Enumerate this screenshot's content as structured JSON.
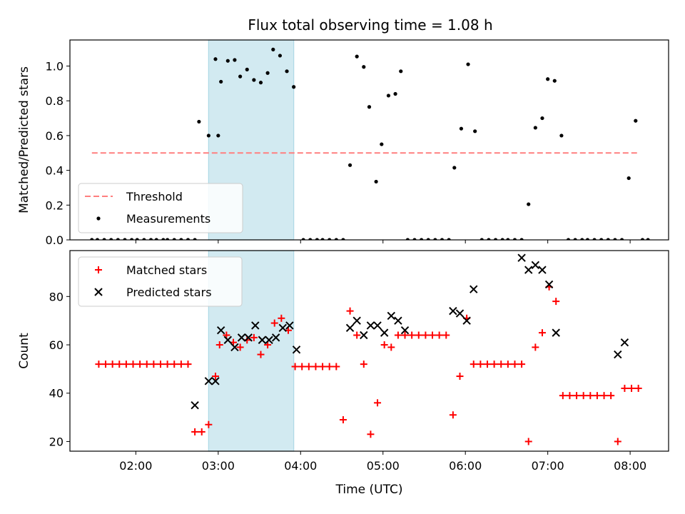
{
  "title": "Flux total observing time = 1.08 h",
  "colors": {
    "threshold": "#ff7f7f",
    "band": "#add8e6",
    "matched": "#ff0000",
    "predicted": "#000000",
    "measurement": "#000000"
  },
  "chart_data": [
    {
      "type": "scatter",
      "ylabel": "Matched/Predicted stars",
      "ylim": [
        0,
        1.15
      ],
      "yticks": [
        "0.0",
        "0.2",
        "0.4",
        "0.6",
        "0.8",
        "1.0"
      ],
      "xlim": [
        "01:12",
        "08:28"
      ],
      "xticks": [
        "02:00",
        "03:00",
        "04:00",
        "05:00",
        "06:00",
        "07:00",
        "08:00"
      ],
      "highlight_band": [
        "02:53",
        "03:55"
      ],
      "legend": {
        "position": "lower-left",
        "entries": [
          "Threshold",
          "Measurements"
        ]
      },
      "threshold": {
        "name": "Threshold",
        "value": 0.5,
        "x": [
          "01:28",
          "08:05"
        ]
      },
      "series": [
        {
          "name": "Measurements",
          "points": [
            [
              "01:28",
              0
            ],
            [
              "01:32",
              0
            ],
            [
              "01:37",
              0
            ],
            [
              "01:42",
              0
            ],
            [
              "01:47",
              0
            ],
            [
              "01:52",
              0
            ],
            [
              "01:57",
              0
            ],
            [
              "02:01",
              0
            ],
            [
              "02:06",
              0
            ],
            [
              "02:11",
              0
            ],
            [
              "02:15",
              0
            ],
            [
              "02:20",
              0
            ],
            [
              "02:23",
              0
            ],
            [
              "02:28",
              0
            ],
            [
              "02:33",
              0
            ],
            [
              "02:38",
              0
            ],
            [
              "02:43",
              0
            ],
            [
              "02:46",
              0.68
            ],
            [
              "02:53",
              0.6
            ],
            [
              "03:00",
              0.6
            ],
            [
              "02:58",
              1.04
            ],
            [
              "03:02",
              0.91
            ],
            [
              "03:07",
              1.03
            ],
            [
              "03:12",
              1.035
            ],
            [
              "03:16",
              0.94
            ],
            [
              "03:21",
              0.98
            ],
            [
              "03:26",
              0.92
            ],
            [
              "03:31",
              0.905
            ],
            [
              "03:36",
              0.96
            ],
            [
              "03:40",
              1.095
            ],
            [
              "03:45",
              1.06
            ],
            [
              "03:50",
              0.97
            ],
            [
              "03:55",
              0.88
            ],
            [
              "04:02",
              0
            ],
            [
              "04:07",
              0
            ],
            [
              "04:12",
              0
            ],
            [
              "04:16",
              0
            ],
            [
              "04:21",
              0
            ],
            [
              "04:26",
              0
            ],
            [
              "04:31",
              0
            ],
            [
              "04:36",
              0.43
            ],
            [
              "04:41",
              1.055
            ],
            [
              "04:46",
              0.995
            ],
            [
              "04:50",
              0.765
            ],
            [
              "04:55",
              0.335
            ],
            [
              "04:59",
              0.55
            ],
            [
              "05:04",
              0.83
            ],
            [
              "05:09",
              0.84
            ],
            [
              "05:13",
              0.97
            ],
            [
              "05:18",
              0
            ],
            [
              "05:23",
              0
            ],
            [
              "05:28",
              0
            ],
            [
              "05:33",
              0
            ],
            [
              "05:38",
              0
            ],
            [
              "05:43",
              0
            ],
            [
              "05:48",
              0
            ],
            [
              "05:52",
              0.415
            ],
            [
              "05:57",
              0.64
            ],
            [
              "06:02",
              1.01
            ],
            [
              "06:07",
              0.625
            ],
            [
              "06:12",
              0
            ],
            [
              "06:17",
              0
            ],
            [
              "06:22",
              0
            ],
            [
              "06:27",
              0
            ],
            [
              "06:31",
              0
            ],
            [
              "06:36",
              0
            ],
            [
              "06:41",
              0
            ],
            [
              "06:46",
              0.205
            ],
            [
              "06:51",
              0.645
            ],
            [
              "06:56",
              0.7
            ],
            [
              "07:00",
              0.925
            ],
            [
              "07:05",
              0.915
            ],
            [
              "07:10",
              0.6
            ],
            [
              "07:15",
              0
            ],
            [
              "07:20",
              0
            ],
            [
              "07:25",
              0
            ],
            [
              "07:29",
              0
            ],
            [
              "07:34",
              0
            ],
            [
              "07:39",
              0
            ],
            [
              "07:44",
              0
            ],
            [
              "07:49",
              0
            ],
            [
              "07:54",
              0
            ],
            [
              "07:59",
              0.355
            ],
            [
              "08:04",
              0.685
            ],
            [
              "08:09",
              0
            ],
            [
              "08:13",
              0
            ]
          ]
        }
      ]
    },
    {
      "type": "scatter",
      "ylabel": "Count",
      "xlabel": "Time (UTC)",
      "ylim": [
        16,
        99
      ],
      "yticks": [
        "20",
        "40",
        "60",
        "80"
      ],
      "xlim": [
        "01:12",
        "08:28"
      ],
      "xticks": [
        "02:00",
        "03:00",
        "04:00",
        "05:00",
        "06:00",
        "07:00",
        "08:00"
      ],
      "highlight_band": [
        "02:53",
        "03:55"
      ],
      "legend": {
        "position": "upper-left",
        "entries": [
          "Matched stars",
          "Predicted stars"
        ]
      },
      "series": [
        {
          "name": "Matched stars",
          "marker": "plus",
          "points": [
            [
              "01:33",
              52
            ],
            [
              "01:38",
              52
            ],
            [
              "01:43",
              52
            ],
            [
              "01:48",
              52
            ],
            [
              "01:53",
              52
            ],
            [
              "01:58",
              52
            ],
            [
              "02:03",
              52
            ],
            [
              "02:08",
              52
            ],
            [
              "02:13",
              52
            ],
            [
              "02:18",
              52
            ],
            [
              "02:23",
              52
            ],
            [
              "02:28",
              52
            ],
            [
              "02:33",
              52
            ],
            [
              "02:38",
              52
            ],
            [
              "02:43",
              24
            ],
            [
              "02:48",
              24
            ],
            [
              "02:53",
              27
            ],
            [
              "02:58",
              47
            ],
            [
              "03:01",
              60
            ],
            [
              "03:06",
              64
            ],
            [
              "03:11",
              61
            ],
            [
              "03:16",
              59
            ],
            [
              "03:21",
              62
            ],
            [
              "03:26",
              63
            ],
            [
              "03:31",
              56
            ],
            [
              "03:36",
              60
            ],
            [
              "03:41",
              69
            ],
            [
              "03:46",
              71
            ],
            [
              "03:51",
              66
            ],
            [
              "03:56",
              51
            ],
            [
              "04:01",
              51
            ],
            [
              "04:06",
              51
            ],
            [
              "04:11",
              51
            ],
            [
              "04:16",
              51
            ],
            [
              "04:21",
              51
            ],
            [
              "04:26",
              51
            ],
            [
              "04:31",
              29
            ],
            [
              "04:36",
              74
            ],
            [
              "04:41",
              64
            ],
            [
              "04:46",
              52
            ],
            [
              "04:51",
              23
            ],
            [
              "04:56",
              36
            ],
            [
              "05:01",
              60
            ],
            [
              "05:06",
              59
            ],
            [
              "05:11",
              64
            ],
            [
              "05:16",
              64
            ],
            [
              "05:21",
              64
            ],
            [
              "05:26",
              64
            ],
            [
              "05:31",
              64
            ],
            [
              "05:36",
              64
            ],
            [
              "05:41",
              64
            ],
            [
              "05:46",
              64
            ],
            [
              "05:51",
              31
            ],
            [
              "05:56",
              47
            ],
            [
              "06:01",
              71
            ],
            [
              "06:06",
              52
            ],
            [
              "06:11",
              52
            ],
            [
              "06:16",
              52
            ],
            [
              "06:21",
              52
            ],
            [
              "06:26",
              52
            ],
            [
              "06:31",
              52
            ],
            [
              "06:36",
              52
            ],
            [
              "06:41",
              52
            ],
            [
              "06:46",
              20
            ],
            [
              "06:51",
              59
            ],
            [
              "06:56",
              65
            ],
            [
              "07:01",
              84
            ],
            [
              "07:06",
              78
            ],
            [
              "07:11",
              39
            ],
            [
              "07:16",
              39
            ],
            [
              "07:21",
              39
            ],
            [
              "07:26",
              39
            ],
            [
              "07:31",
              39
            ],
            [
              "07:36",
              39
            ],
            [
              "07:41",
              39
            ],
            [
              "07:46",
              39
            ],
            [
              "07:51",
              20
            ],
            [
              "07:56",
              42
            ],
            [
              "08:01",
              42
            ],
            [
              "08:06",
              42
            ]
          ]
        },
        {
          "name": "Predicted stars",
          "marker": "x",
          "points": [
            [
              "02:43",
              35
            ],
            [
              "02:53",
              45
            ],
            [
              "02:58",
              45
            ],
            [
              "03:02",
              66
            ],
            [
              "03:07",
              62
            ],
            [
              "03:12",
              59
            ],
            [
              "03:17",
              63
            ],
            [
              "03:22",
              63
            ],
            [
              "03:27",
              68
            ],
            [
              "03:32",
              62
            ],
            [
              "03:37",
              62
            ],
            [
              "03:42",
              63
            ],
            [
              "03:47",
              67
            ],
            [
              "03:52",
              68
            ],
            [
              "03:57",
              58
            ],
            [
              "04:36",
              67
            ],
            [
              "04:41",
              70
            ],
            [
              "04:46",
              64
            ],
            [
              "04:51",
              68
            ],
            [
              "04:56",
              68
            ],
            [
              "05:01",
              65
            ],
            [
              "05:06",
              72
            ],
            [
              "05:11",
              70
            ],
            [
              "05:16",
              66
            ],
            [
              "05:51",
              74
            ],
            [
              "05:56",
              73
            ],
            [
              "06:01",
              70
            ],
            [
              "06:06",
              83
            ],
            [
              "06:41",
              96
            ],
            [
              "06:46",
              91
            ],
            [
              "06:51",
              93
            ],
            [
              "06:56",
              91
            ],
            [
              "07:01",
              85
            ],
            [
              "07:06",
              65
            ],
            [
              "07:51",
              56
            ],
            [
              "07:56",
              61
            ]
          ]
        }
      ]
    }
  ]
}
